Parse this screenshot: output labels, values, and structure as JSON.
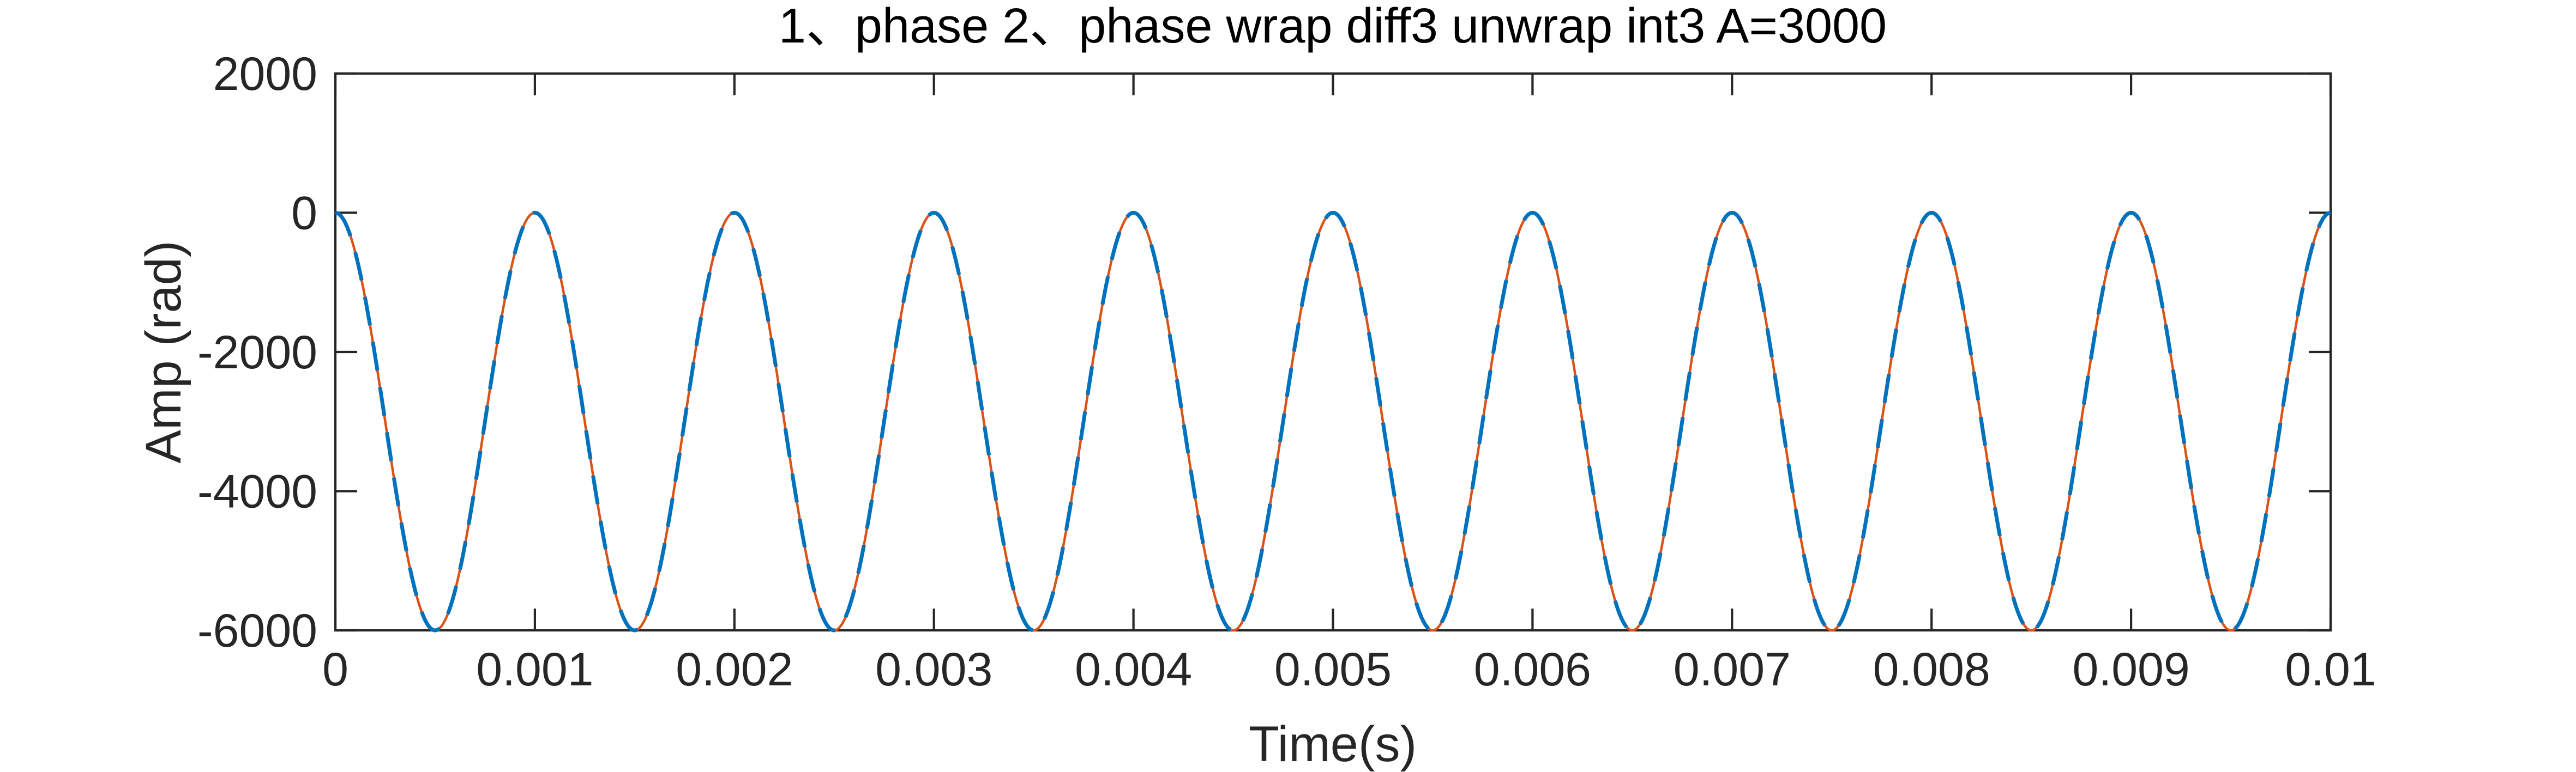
{
  "canvas": {
    "background": "#ffffff"
  },
  "chart_data": {
    "type": "line",
    "title": "1、phase 2、phase wrap diff3 unwrap int3 A=3000",
    "xlabel": "Time(s)",
    "ylabel": "Amp (rad)",
    "xlim": [
      0,
      0.01
    ],
    "ylim": [
      -6000,
      2000
    ],
    "xtick_values": [
      0,
      0.001,
      0.002,
      0.003,
      0.004,
      0.005,
      0.006,
      0.007,
      0.008,
      0.009,
      0.01
    ],
    "xtick_labels": [
      "0",
      "0.001",
      "0.002",
      "0.003",
      "0.004",
      "0.005",
      "0.006",
      "0.007",
      "0.008",
      "0.009",
      "0.01"
    ],
    "ytick_values": [
      2000,
      0,
      -2000,
      -4000,
      -6000
    ],
    "ytick_labels": [
      "2000",
      "0",
      "-2000",
      "-4000",
      "-6000"
    ],
    "grid": false,
    "box": true,
    "ticks_direction": "in",
    "axis_color": "#262626",
    "series": [
      {
        "id": "solid-orange",
        "line_style": "solid",
        "color": "#D95319",
        "line_width": 4.5,
        "equation": "y(t) = 3000*cos(2*pi*1000*t) - 3000",
        "model": {
          "kind": "cosine",
          "amplitude": 3000,
          "dc_offset": -3000,
          "frequency_hz": 1000,
          "phase_rad": 0
        },
        "y_max": 0,
        "y_min": -6000,
        "cycles_shown": 10
      },
      {
        "id": "dashed-blue",
        "line_style": "dashed",
        "color": "#0072BD",
        "line_width": 7,
        "dash_pattern": [
          53,
          31
        ],
        "equation": "y(t) = 3000*cos(2*pi*1000*t) - 3000",
        "model": {
          "kind": "cosine",
          "amplitude": 3000,
          "dc_offset": -3000,
          "frequency_hz": 1000,
          "phase_rad": 0
        },
        "y_max": 0,
        "y_min": -6000,
        "cycles_shown": 10
      }
    ]
  }
}
